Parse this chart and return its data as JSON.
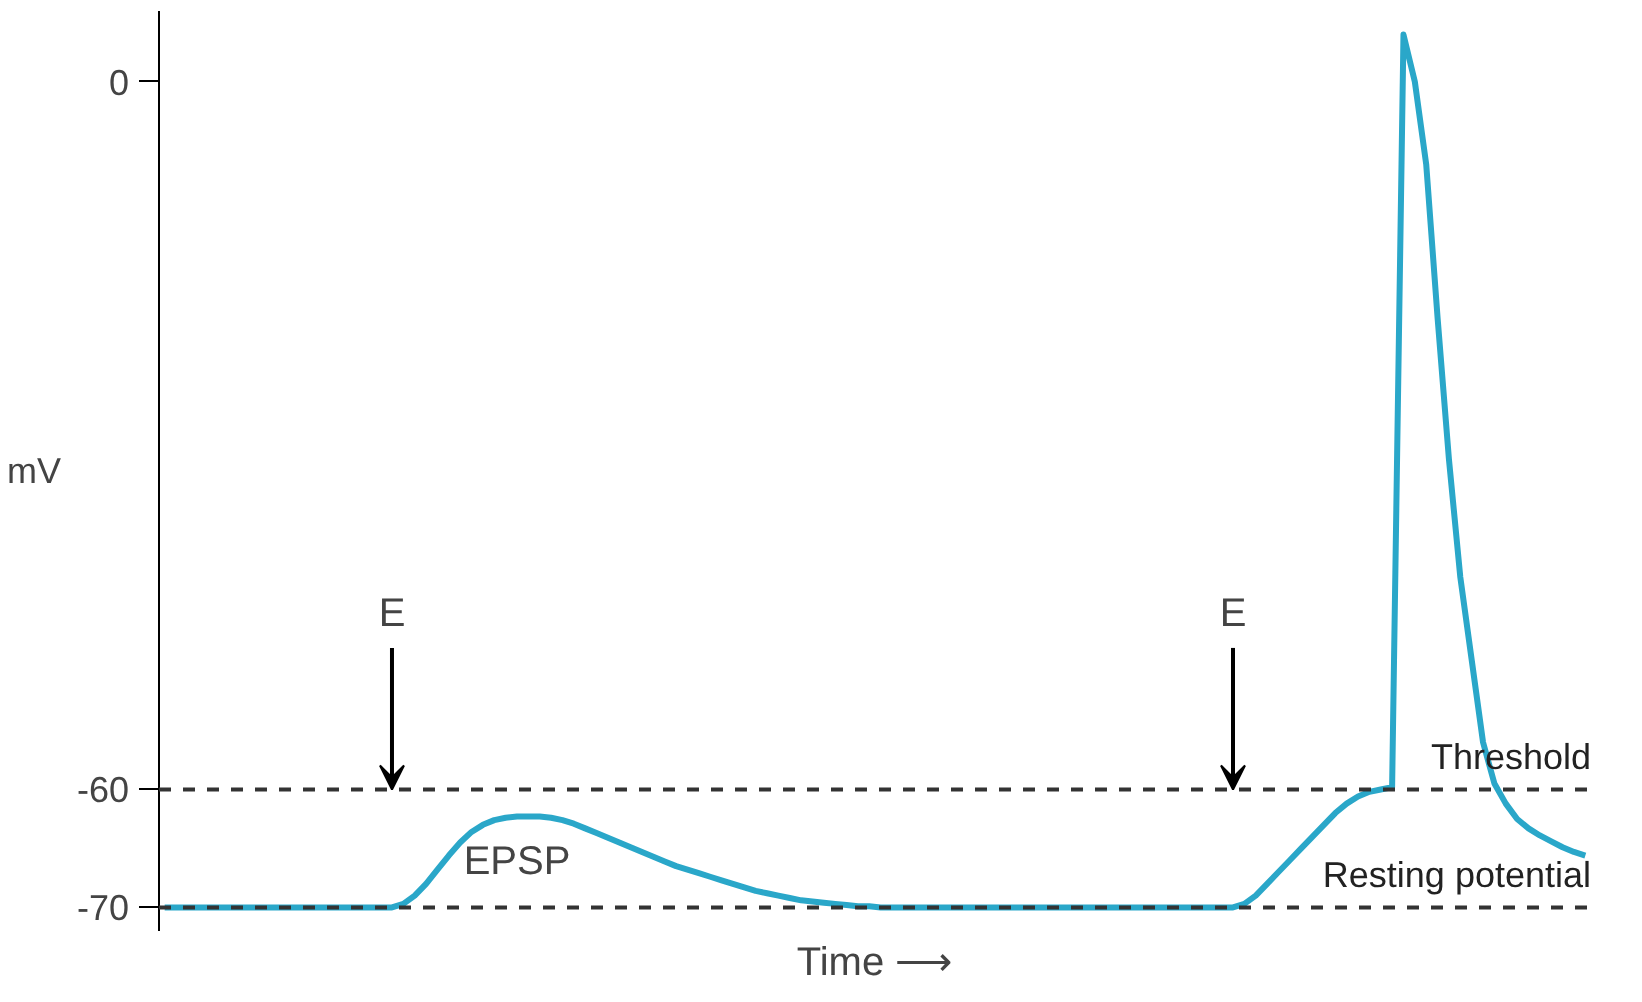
{
  "chart_data": {
    "type": "line",
    "xlabel": "Time ⟶",
    "ylabel": "mV",
    "categories": [
      null,
      null,
      null,
      null,
      null,
      null,
      null,
      null,
      null,
      null,
      null,
      null,
      null,
      null,
      null,
      null,
      null,
      null,
      null,
      null,
      null,
      null,
      null,
      null,
      null,
      null,
      null,
      null,
      null,
      null,
      null,
      null,
      null,
      null,
      null,
      null,
      null,
      null,
      null,
      null,
      null,
      null,
      null,
      null,
      null,
      null,
      null,
      null,
      null,
      null,
      null,
      null,
      null,
      null,
      null,
      null,
      null,
      null,
      null,
      null,
      null,
      null,
      null,
      null,
      null,
      null,
      null,
      null,
      null,
      null,
      null,
      null,
      null,
      null,
      null,
      null,
      null,
      null,
      null,
      null,
      null,
      null,
      null,
      null,
      null,
      null,
      null,
      null,
      null,
      null,
      null,
      null,
      null,
      null,
      null,
      null,
      null,
      null,
      null,
      null,
      null,
      null,
      null,
      null,
      null,
      null,
      null,
      null,
      null,
      null,
      null,
      null,
      null,
      null,
      null,
      null,
      null,
      null,
      null,
      null,
      null,
      null,
      null,
      null,
      null,
      null
    ],
    "series": [
      {
        "color": "#2aa7c9",
        "values": [
          -70,
          -70,
          -70,
          -70,
          -70,
          -70,
          -70,
          -70,
          -70,
          -70,
          -70,
          -70,
          -70,
          -70,
          -70,
          -70,
          -70,
          -70,
          -70,
          -70,
          -70,
          -69.7,
          -69,
          -68,
          -66.8,
          -65.6,
          -64.5,
          -63.6,
          -63,
          -62.6,
          -62.4,
          -62.3,
          -62.3,
          -62.3,
          -62.4,
          -62.6,
          -62.9,
          -63.3,
          -63.7,
          -64.1,
          -64.5,
          -64.9,
          -65.3,
          -65.7,
          -66.1,
          -66.5,
          -66.8,
          -67.1,
          -67.4,
          -67.7,
          -68,
          -68.3,
          -68.6,
          -68.8,
          -69,
          -69.2,
          -69.4,
          -69.5,
          -69.6,
          -69.7,
          -69.8,
          -69.9,
          -69.9,
          -70,
          -70,
          -70,
          -70,
          -70,
          -70,
          -70,
          -70,
          -70,
          -70,
          -70,
          -70,
          -70,
          -70,
          -70,
          -70,
          -70,
          -70,
          -70,
          -70,
          -70,
          -70,
          -70,
          -70,
          -70,
          -70,
          -70,
          -70,
          -70,
          -70,
          -70,
          -70,
          -69.7,
          -69,
          -68,
          -67,
          -66,
          -65,
          -64,
          -63,
          -62,
          -61.2,
          -60.6,
          -60.2,
          -60,
          -59.8,
          4,
          0,
          -7,
          -20,
          -32,
          -42,
          -49,
          -56,
          -59.5,
          -61.2,
          -62.5,
          -63.3,
          -63.9,
          -64.4,
          -64.9,
          -65.3,
          -65.6
        ]
      }
    ],
    "ylim": [
      -72,
      6
    ],
    "yticks": [
      0,
      -60,
      -70
    ],
    "tick_labels": "y",
    "line_style": "solid",
    "ref_lines": [
      {
        "axis": "y",
        "value": -60,
        "label": "Threshold",
        "color": "#333333",
        "line_style": "dashed"
      },
      {
        "axis": "y",
        "value": -70,
        "label": "Resting potential",
        "color": "#333333",
        "line_style": "dashed"
      }
    ],
    "annotations": [
      "E",
      "E",
      "EPSP"
    ]
  }
}
